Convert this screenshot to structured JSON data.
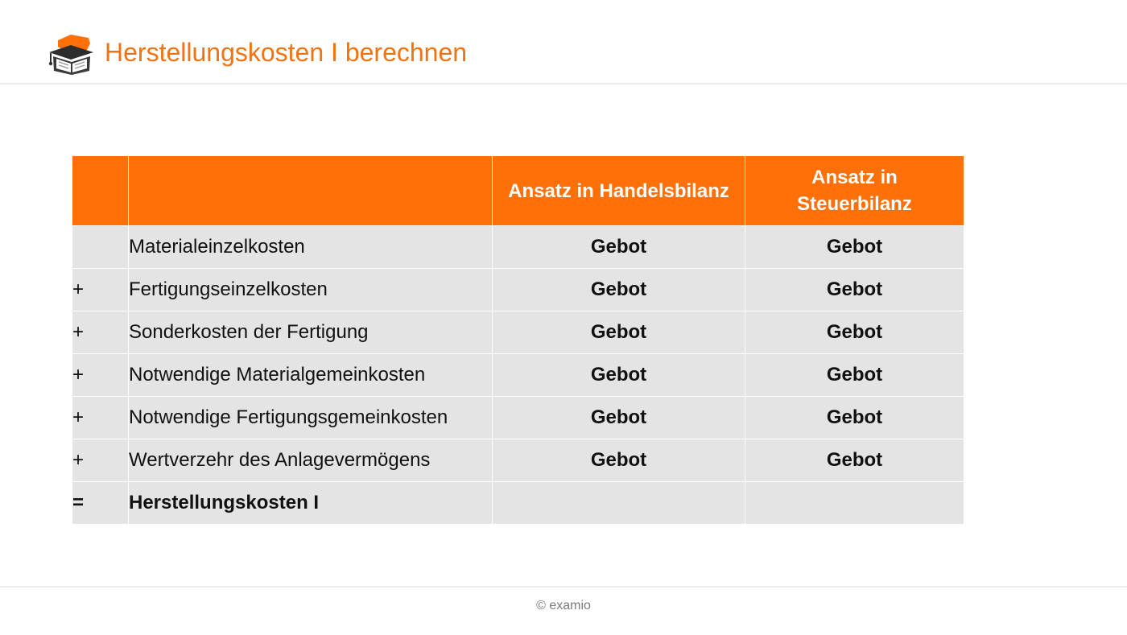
{
  "header": {
    "title": "Herstellungskosten I berechnen",
    "logo_icon": "graduation-cap-book-logo"
  },
  "colors": {
    "accent": "#f07314",
    "table_header": "#ff7108",
    "row_background": "#e4e4e4"
  },
  "table": {
    "columns": [
      "",
      "",
      "Ansatz in Handelsbilanz",
      "Ansatz in\nSteuerbilanz"
    ],
    "rows": [
      {
        "op": "",
        "position": "Materialeinzelkosten",
        "handelsbilanz": "Gebot",
        "steuerbilanz": "Gebot"
      },
      {
        "op": "+",
        "position": "Fertigungseinzelkosten",
        "handelsbilanz": "Gebot",
        "steuerbilanz": "Gebot"
      },
      {
        "op": "+",
        "position": "Sonderkosten der Fertigung",
        "handelsbilanz": "Gebot",
        "steuerbilanz": "Gebot"
      },
      {
        "op": "+",
        "position": "Notwendige Materialgemeinkosten",
        "handelsbilanz": "Gebot",
        "steuerbilanz": "Gebot"
      },
      {
        "op": "+",
        "position": "Notwendige Fertigungsgemeinkosten",
        "handelsbilanz": "Gebot",
        "steuerbilanz": "Gebot"
      },
      {
        "op": "+",
        "position": "Wertverzehr des Anlagevermögens",
        "handelsbilanz": "Gebot",
        "steuerbilanz": "Gebot"
      },
      {
        "op": "=",
        "position": "Herstellungskosten I",
        "handelsbilanz": "",
        "steuerbilanz": ""
      }
    ]
  },
  "footer": {
    "copyright": "© examio"
  }
}
